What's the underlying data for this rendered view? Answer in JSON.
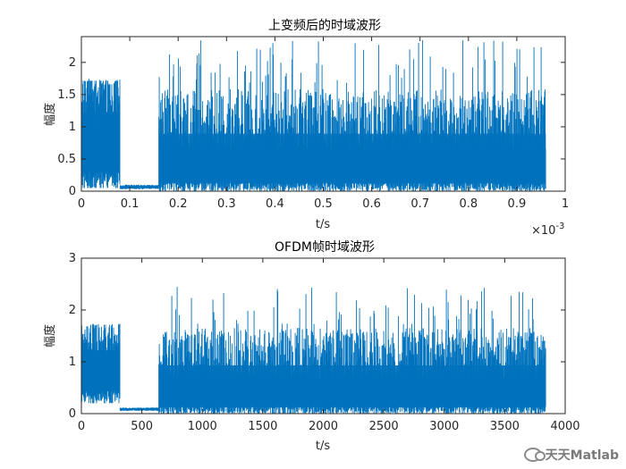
{
  "chart_data": [
    {
      "type": "line",
      "title": "上变频后的时域波形",
      "xlabel": "t/s",
      "ylabel": "幅度",
      "xlim": [
        0,
        0.001
      ],
      "ylim": [
        0,
        2.4
      ],
      "x_ticks": [
        0,
        0.1,
        0.2,
        0.3,
        0.4,
        0.5,
        0.6,
        0.7,
        0.8,
        0.9,
        1
      ],
      "y_ticks": [
        0,
        0.5,
        1,
        1.5,
        2
      ],
      "x_exponent_label": "×10",
      "x_exponent_power": "-3",
      "x_tick_scale": 0.001,
      "color": "#0072BD",
      "segments": [
        {
          "x_start": 0,
          "x_end": 8e-05,
          "kind": "preamble",
          "amplitude_range": [
            0.05,
            1.75
          ]
        },
        {
          "x_start": 8e-05,
          "x_end": 0.00016,
          "kind": "low",
          "amplitude_range": [
            0.03,
            0.1
          ]
        },
        {
          "x_start": 0.00016,
          "x_end": 0.00096,
          "kind": "data",
          "amplitude_range": [
            0.0,
            2.35
          ]
        }
      ]
    },
    {
      "type": "line",
      "title": "OFDM帧时域波形",
      "xlabel": "t/s",
      "ylabel": "幅度",
      "xlim": [
        0,
        4000
      ],
      "ylim": [
        0,
        3
      ],
      "x_ticks": [
        0,
        500,
        1000,
        1500,
        2000,
        2500,
        3000,
        3500,
        4000
      ],
      "y_ticks": [
        0,
        1,
        2,
        3
      ],
      "x_tick_scale": 1,
      "color": "#0072BD",
      "segments": [
        {
          "x_start": 0,
          "x_end": 320,
          "kind": "preamble",
          "amplitude_range": [
            0.2,
            1.75
          ]
        },
        {
          "x_start": 320,
          "x_end": 640,
          "kind": "low",
          "amplitude_range": [
            0.05,
            0.12
          ]
        },
        {
          "x_start": 640,
          "x_end": 3840,
          "kind": "data",
          "amplitude_range": [
            0.0,
            2.45
          ]
        }
      ]
    }
  ],
  "watermark": {
    "text": "天天Matlab"
  }
}
